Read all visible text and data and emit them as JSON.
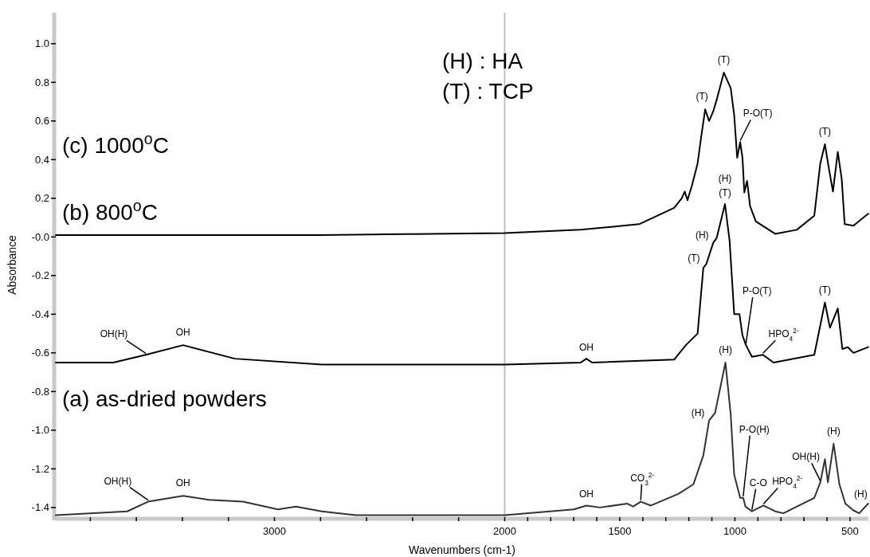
{
  "chart_data": {
    "type": "line",
    "xlabel": "Wavenumbers (cm-1)",
    "ylabel": "Absorbance",
    "xlim": [
      3950,
      420
    ],
    "ylim": [
      -1.45,
      1.16
    ],
    "xticks": [
      {
        "value": 3800,
        "label": null
      },
      {
        "value": 3600,
        "label": null
      },
      {
        "value": 3400,
        "label": null
      },
      {
        "value": 3200,
        "label": null
      },
      3000,
      {
        "value": 2800,
        "label": null
      },
      {
        "value": 2600,
        "label": null
      },
      {
        "value": 2400,
        "label": null
      },
      {
        "value": 2200,
        "label": null
      },
      2000,
      {
        "value": 1900,
        "label": null
      },
      {
        "value": 1800,
        "label": null
      },
      {
        "value": 1700,
        "label": null
      },
      {
        "value": 1600,
        "label": null
      },
      1500,
      {
        "value": 1400,
        "label": null
      },
      {
        "value": 1300,
        "label": null
      },
      {
        "value": 1200,
        "label": null
      },
      {
        "value": 1100,
        "label": null
      },
      1000,
      {
        "value": 900,
        "label": null
      },
      {
        "value": 800,
        "label": null
      },
      {
        "value": 700,
        "label": null
      },
      {
        "value": 600,
        "label": null
      },
      500
    ],
    "yticks": [
      {
        "value": -1.4,
        "label": "-1.4"
      },
      {
        "value": -1.2,
        "label": "-1.2"
      },
      {
        "value": -1.0,
        "label": "-1.0"
      },
      {
        "value": -0.8,
        "label": "-0.8"
      },
      {
        "value": -0.6,
        "label": "-0.6"
      },
      {
        "value": -0.4,
        "label": "-0.4"
      },
      {
        "value": -0.2,
        "label": "-0.2"
      },
      {
        "value": 0,
        "label": "-0.0"
      },
      {
        "value": 0.2,
        "label": "0.2"
      },
      {
        "value": 0.4,
        "label": "0.4"
      },
      {
        "value": 0.6,
        "label": "0.6"
      },
      {
        "value": 0.8,
        "label": "0.8"
      },
      {
        "value": 1.0,
        "label": "1.0"
      }
    ],
    "grid": false,
    "marker": "none",
    "line_style": "solid",
    "ref_lines": [
      {
        "axis": "x",
        "value": 2000,
        "label": null,
        "color": "#c0c0c0"
      }
    ],
    "series": [
      {
        "color": "#000000",
        "x": [
          3950,
          3600,
          3200,
          2800,
          2400,
          2000,
          1670,
          1416,
          1264,
          1231,
          1218,
          1206,
          1188,
          1162,
          1145,
          1129,
          1112,
          1094,
          1079,
          1048,
          1018,
          1003,
          990,
          977,
          967,
          959,
          947,
          934,
          909,
          825,
          731,
          655,
          629,
          609,
          591,
          574,
          553,
          536,
          523,
          485,
          452,
          421
        ],
        "values": [
          0.01,
          0.01,
          0.01,
          0.01,
          0.015,
          0.02,
          0.037,
          0.066,
          0.15,
          0.2,
          0.235,
          0.19,
          0.26,
          0.38,
          0.53,
          0.66,
          0.6,
          0.65,
          0.71,
          0.85,
          0.77,
          0.63,
          0.41,
          0.49,
          0.41,
          0.23,
          0.29,
          0.16,
          0.08,
          0.016,
          0.037,
          0.11,
          0.38,
          0.48,
          0.35,
          0.235,
          0.44,
          0.3,
          0.066,
          0.058,
          0.09,
          0.12
        ]
      },
      {
        "color": "#000000",
        "x": [
          3950,
          3700,
          3559,
          3397,
          3172,
          2794,
          2400,
          2000,
          1670,
          1645,
          1620,
          1264,
          1213,
          1162,
          1137,
          1124,
          1094,
          1079,
          1043,
          1023,
          1003,
          980,
          967,
          952,
          926,
          878,
          832,
          655,
          609,
          587,
          553,
          533,
          510,
          485,
          421
        ],
        "values": [
          -0.65,
          -0.65,
          -0.61,
          -0.56,
          -0.63,
          -0.66,
          -0.66,
          -0.66,
          -0.65,
          -0.63,
          -0.65,
          -0.635,
          -0.56,
          -0.5,
          -0.16,
          -0.14,
          -0.03,
          -0.005,
          0.17,
          -0.02,
          -0.4,
          -0.4,
          -0.51,
          -0.56,
          -0.62,
          -0.61,
          -0.65,
          -0.61,
          -0.34,
          -0.47,
          -0.37,
          -0.58,
          -0.57,
          -0.6,
          -0.57
        ]
      },
      {
        "color": "#333333",
        "x": [
          3950,
          3640,
          3549,
          3397,
          3284,
          3137,
          2985,
          2907,
          2794,
          2647,
          2200,
          2000,
          1700,
          1645,
          1586,
          1467,
          1442,
          1409,
          1365,
          1246,
          1180,
          1137,
          1112,
          1086,
          1041,
          1018,
          1003,
          977,
          964,
          954,
          926,
          876,
          825,
          789,
          655,
          629,
          609,
          596,
          571,
          546,
          520,
          485,
          460,
          421
        ],
        "values": [
          -1.44,
          -1.42,
          -1.37,
          -1.34,
          -1.36,
          -1.37,
          -1.41,
          -1.395,
          -1.42,
          -1.44,
          -1.44,
          -1.44,
          -1.41,
          -1.39,
          -1.4,
          -1.38,
          -1.395,
          -1.37,
          -1.39,
          -1.33,
          -1.28,
          -1.13,
          -0.95,
          -0.91,
          -0.65,
          -0.92,
          -1.23,
          -1.35,
          -1.35,
          -1.395,
          -1.42,
          -1.39,
          -1.42,
          -1.43,
          -1.35,
          -1.27,
          -1.15,
          -1.27,
          -1.07,
          -1.28,
          -1.38,
          -1.415,
          -1.43,
          -1.38
        ]
      }
    ],
    "annotations": [
      "(c) 1000$^{o}$C",
      "(b) 800$^{o}$C",
      "(a) as-dried powders",
      "(H) : HA",
      "(T) : TCP",
      {
        "text": "(T)",
        "x": 1048,
        "y": 0.85
      },
      {
        "text": "(T)",
        "x": 1129,
        "y": 0.66
      },
      {
        "text": "P-O(T)",
        "x": 977,
        "y": 0.49
      },
      {
        "text": "(T)",
        "x": 609,
        "y": 0.48
      },
      {
        "text": "(H)",
        "x": 1043,
        "y": 0.17
      },
      {
        "text": "(T)",
        "x": 1043,
        "y": 0.17
      },
      {
        "text": "(H)",
        "x": 1094,
        "y": -0.03
      },
      {
        "text": "(T)",
        "x": 1137,
        "y": -0.16
      },
      {
        "text": "P-O(T)",
        "x": 952,
        "y": -0.56
      },
      {
        "text": "(T)",
        "x": 609,
        "y": -0.34
      },
      {
        "text": "HPO$_{4}$$^{2-}$",
        "x": 878,
        "y": -0.61
      },
      {
        "text": "OH",
        "x": 1645,
        "y": -0.63
      },
      {
        "text": "OH(H)",
        "x": 3559,
        "y": -0.61
      },
      {
        "text": "OH",
        "x": 3397,
        "y": -0.56
      },
      {
        "text": "(H)",
        "x": 1041,
        "y": -0.65
      },
      {
        "text": "(H)",
        "x": 1112,
        "y": -0.95
      },
      {
        "text": "P-O(H)",
        "x": 964,
        "y": -1.35
      },
      {
        "text": "C-O",
        "x": 926,
        "y": -1.42
      },
      {
        "text": "HPO$_{4}$$^{2-}$",
        "x": 876,
        "y": -1.39
      },
      {
        "text": "OH(H)",
        "x": 629,
        "y": -1.27
      },
      {
        "text": "(H)",
        "x": 571,
        "y": -1.07
      },
      {
        "text": "(H)",
        "x": 460,
        "y": -1.43
      },
      {
        "text": "CO$_{3}$$^{2-}$",
        "x": 1409,
        "y": -1.37
      },
      {
        "text": "OH",
        "x": 1645,
        "y": -1.39
      },
      {
        "text": "OH(H)",
        "x": 3549,
        "y": -1.37
      },
      {
        "text": "OH",
        "x": 3397,
        "y": -1.34
      }
    ]
  }
}
